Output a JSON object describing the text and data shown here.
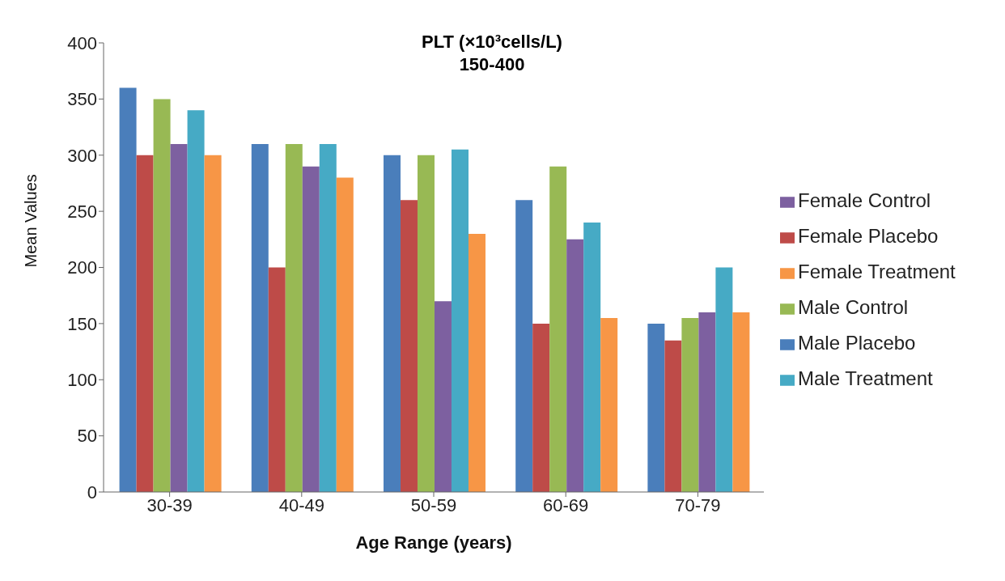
{
  "chart_data": {
    "type": "bar",
    "title": "PLT (×10³cells/L)",
    "subtitle": "150-400",
    "xlabel": "Age Range (years)",
    "ylabel": "Mean Values",
    "categories": [
      "30-39",
      "40-49",
      "50-59",
      "60-69",
      "70-79"
    ],
    "series": [
      {
        "name": "Male Placebo",
        "color": "#4a7ebb",
        "values": [
          360,
          310,
          300,
          260,
          150
        ]
      },
      {
        "name": "Female Placebo",
        "color": "#be4b48",
        "values": [
          300,
          200,
          260,
          150,
          135
        ]
      },
      {
        "name": "Male Control",
        "color": "#98b954",
        "values": [
          350,
          310,
          300,
          290,
          155
        ]
      },
      {
        "name": "Female Control",
        "color": "#7d60a0",
        "values": [
          310,
          290,
          170,
          225,
          160
        ]
      },
      {
        "name": "Male Treatment",
        "color": "#46aac5",
        "values": [
          340,
          310,
          305,
          240,
          200
        ]
      },
      {
        "name": "Female Treatment",
        "color": "#f79646",
        "values": [
          300,
          280,
          230,
          155,
          160
        ]
      }
    ],
    "ylim": [
      0,
      400
    ],
    "yticks": [
      0,
      50,
      100,
      150,
      200,
      250,
      300,
      350,
      400
    ],
    "grid": false,
    "legend": "right"
  }
}
